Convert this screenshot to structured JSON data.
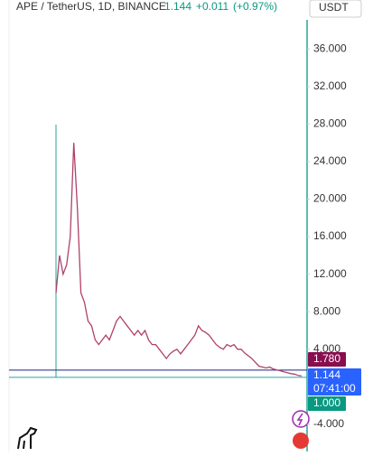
{
  "header": {
    "symbol": "APE / TetherUS, 1D, BINANCE",
    "price": "1.144",
    "change": "+0.011",
    "change_pct": "(+0.97%)",
    "currency": "USDT"
  },
  "chart_data": {
    "type": "line",
    "values": [
      10,
      14,
      12,
      13,
      16,
      26,
      19,
      10,
      9,
      7,
      6.5,
      5,
      4.5,
      5,
      5.5,
      5,
      6,
      7,
      7.5,
      7,
      6.5,
      6,
      5.5,
      6,
      5.5,
      6,
      5,
      4.5,
      4.5,
      4,
      3.5,
      3,
      3.5,
      3.8,
      4,
      3.5,
      4,
      4.5,
      5,
      5.5,
      6.5,
      6,
      5.8,
      5.5,
      5,
      4.5,
      4.2,
      4,
      4.5,
      4.3,
      4.5,
      4,
      4,
      3.6,
      3.3,
      3,
      2.6,
      2.2,
      2.1,
      2,
      2.1,
      1.9,
      1.8,
      1.7,
      1.6,
      1.5,
      1.4,
      1.35,
      1.2,
      1.144
    ],
    "color": "#b0406a",
    "ylim": [
      -6.9,
      39.3
    ],
    "yticks": [
      {
        "value": -4,
        "label": "-4.000"
      },
      {
        "value": 4,
        "label": "4.000"
      },
      {
        "value": 8,
        "label": "8.000"
      },
      {
        "value": 12,
        "label": "12.000"
      },
      {
        "value": 16,
        "label": "16.000"
      },
      {
        "value": 20,
        "label": "20.000"
      },
      {
        "value": 24,
        "label": "24.000"
      },
      {
        "value": 28,
        "label": "28.000"
      },
      {
        "value": 32,
        "label": "32.000"
      },
      {
        "value": 36,
        "label": "36.000"
      }
    ],
    "price_labels": [
      {
        "value": 1.78,
        "label": "1.780",
        "color": "#880e4f"
      },
      {
        "value": 1.144,
        "label": "1.144",
        "color": "#2962ff"
      },
      {
        "value": 1,
        "label": "1.000",
        "color": "#089981"
      }
    ],
    "countdown": "07:41:00"
  }
}
